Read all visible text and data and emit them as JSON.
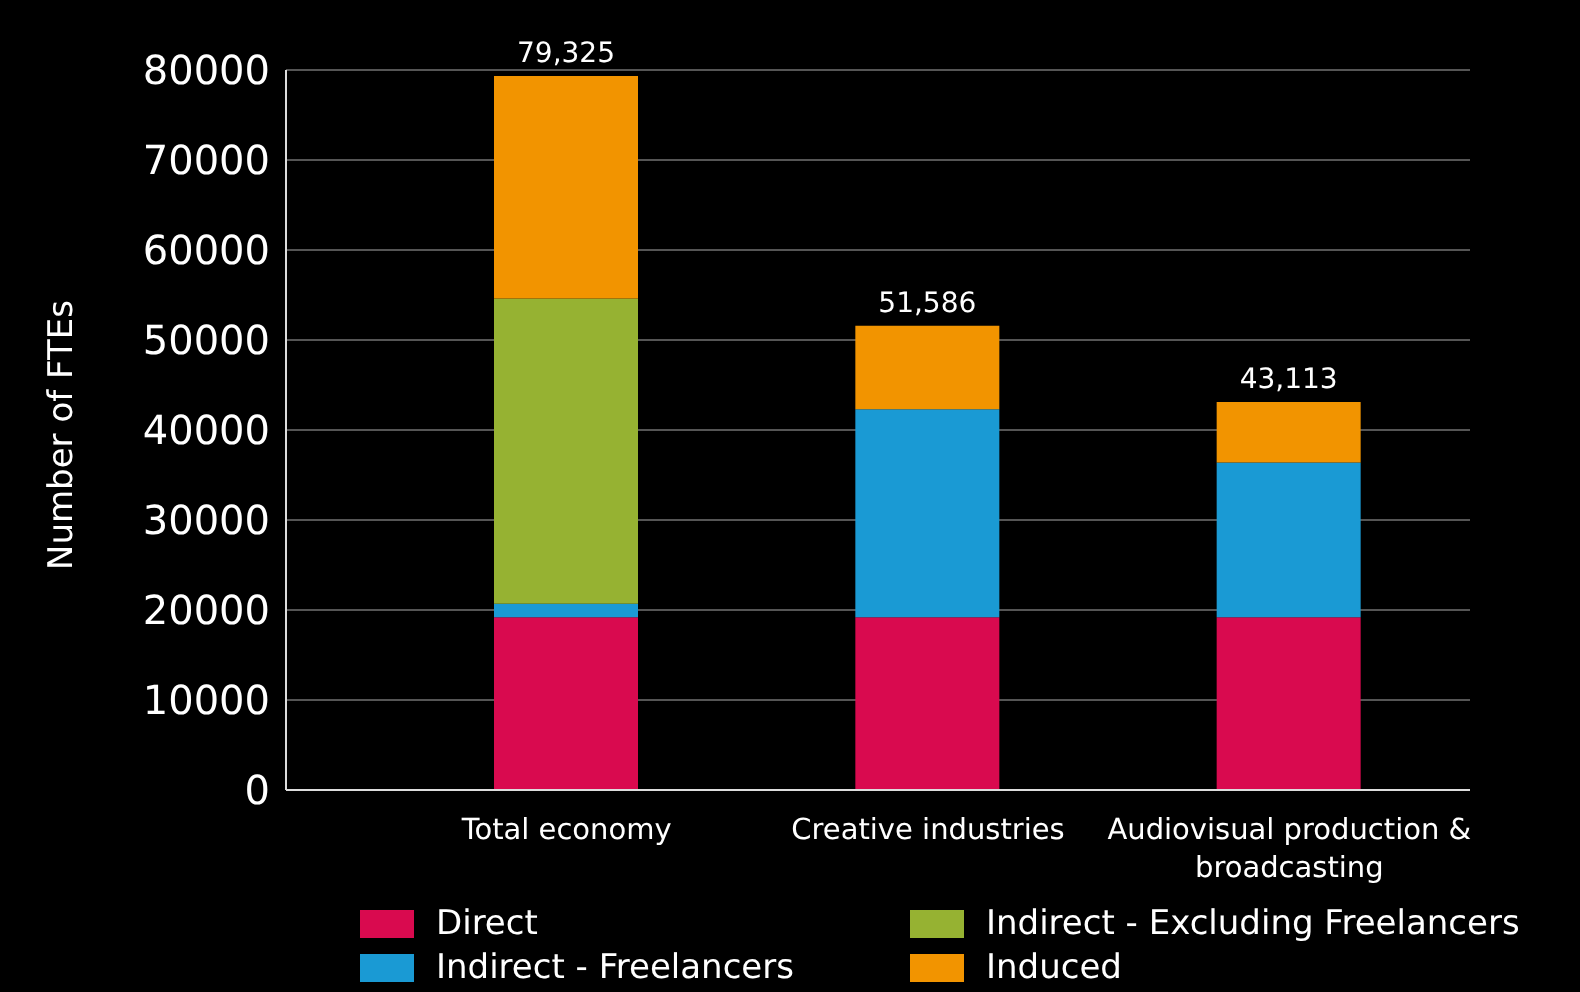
{
  "chart_data": {
    "type": "bar",
    "stacked": true,
    "ylabel": "Number of FTEs",
    "categories": [
      "Total economy",
      "Creative industries",
      "Audiovisual production & broadcasting"
    ],
    "series": [
      {
        "name": "Direct",
        "color": "#d90a4f",
        "values": [
          19200,
          19200,
          19200
        ]
      },
      {
        "name": "Indirect - Freelancers",
        "color": "#1a9ad4",
        "values": [
          1500,
          23100,
          17200
        ]
      },
      {
        "name": "Indirect - Excluding Freelancers",
        "color": "#96b232",
        "values": [
          33900,
          0,
          0
        ]
      },
      {
        "name": "Induced",
        "color": "#f29400",
        "values": [
          24725,
          9286,
          6713
        ]
      }
    ],
    "totals": [
      "79,325",
      "51,586",
      "43,113"
    ],
    "ylim": [
      0,
      80000
    ],
    "yticks": [
      0,
      10000,
      20000,
      30000,
      40000,
      50000,
      60000,
      70000,
      80000
    ],
    "grid": "y",
    "legend": "bottom"
  }
}
